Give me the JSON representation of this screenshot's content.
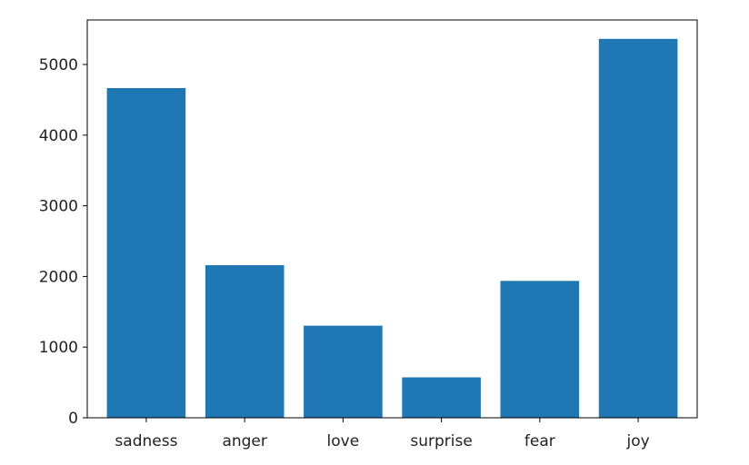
{
  "chart_data": {
    "type": "bar",
    "categories": [
      "sadness",
      "anger",
      "love",
      "surprise",
      "fear",
      "joy"
    ],
    "values": [
      4666,
      2159,
      1304,
      572,
      1937,
      5362
    ],
    "ylim": [
      0,
      5630
    ],
    "yticks": [
      0,
      1000,
      2000,
      3000,
      4000,
      5000
    ],
    "ytick_labels": [
      "0",
      "1000",
      "2000",
      "3000",
      "4000",
      "5000"
    ],
    "bar_color": "#1f77b4",
    "title": "",
    "xlabel": "",
    "ylabel": "",
    "grid": false,
    "legend": "none"
  }
}
